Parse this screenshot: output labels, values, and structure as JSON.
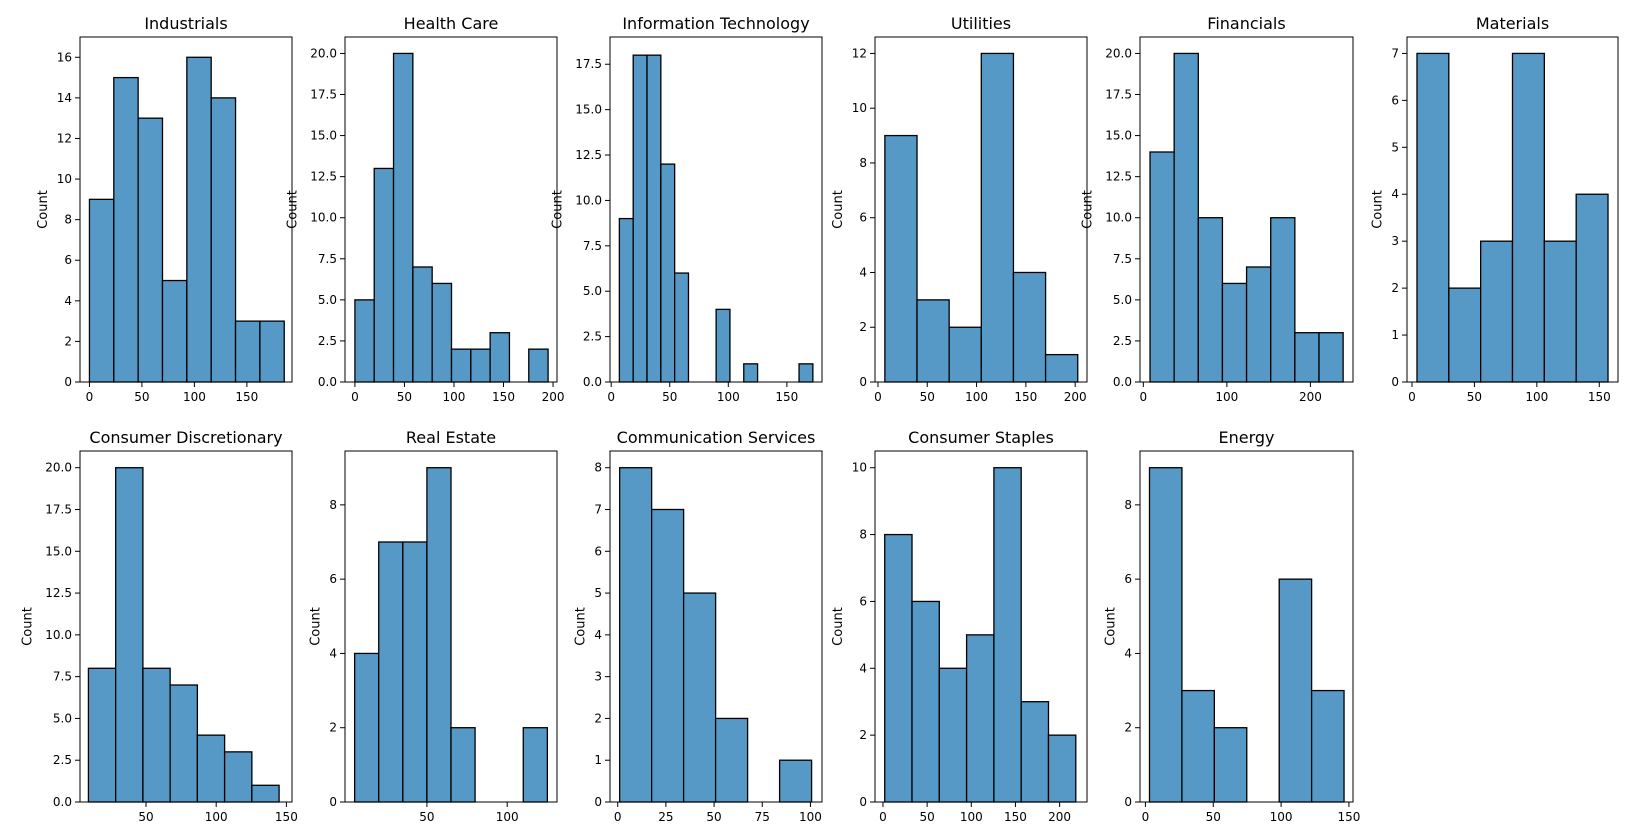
{
  "chart_data": [
    {
      "type": "bar",
      "title": "Industrials",
      "ylabel": "Count",
      "bin_start": 0,
      "bin_width": 23.2,
      "values": [
        9,
        15,
        13,
        5,
        16,
        14,
        3,
        3
      ],
      "xlim": [
        -9,
        193
      ],
      "ylim": [
        0,
        17
      ],
      "xticks": [
        0,
        50,
        100,
        150
      ],
      "xtick_labels": [
        "0",
        "50",
        "100",
        "150"
      ],
      "yticks": [
        0,
        2,
        4,
        6,
        8,
        10,
        12,
        14,
        16
      ],
      "ytick_labels": [
        "0",
        "2",
        "4",
        "6",
        "8",
        "10",
        "12",
        "14",
        "16"
      ]
    },
    {
      "type": "bar",
      "title": "Health Care",
      "ylabel": "Count",
      "bin_start": 0,
      "bin_width": 19.5,
      "values": [
        5,
        13,
        20,
        7,
        6,
        2,
        2,
        3,
        0,
        2
      ],
      "xlim": [
        -10,
        204
      ],
      "ylim": [
        0,
        21
      ],
      "xticks": [
        0,
        50,
        100,
        150,
        200
      ],
      "xtick_labels": [
        "0",
        "50",
        "100",
        "150",
        "200"
      ],
      "yticks": [
        0,
        2.5,
        5,
        7.5,
        10,
        12.5,
        15,
        17.5,
        20
      ],
      "ytick_labels": [
        "0.0",
        "2.5",
        "5.0",
        "7.5",
        "10.0",
        "12.5",
        "15.0",
        "17.5",
        "20.0"
      ]
    },
    {
      "type": "bar",
      "title": "Information Technology",
      "ylabel": "Count",
      "bin_start": 7,
      "bin_width": 11.8,
      "values": [
        9,
        18,
        18,
        12,
        6,
        0,
        0,
        4,
        0,
        1,
        0,
        0,
        0,
        1
      ],
      "xlim": [
        -1,
        180
      ],
      "ylim": [
        0,
        19
      ],
      "xticks": [
        0,
        50,
        100,
        150
      ],
      "xtick_labels": [
        "0",
        "50",
        "100",
        "150"
      ],
      "yticks": [
        0,
        2.5,
        5,
        7.5,
        10,
        12.5,
        15,
        17.5
      ],
      "ytick_labels": [
        "0.0",
        "2.5",
        "5.0",
        "7.5",
        "10.0",
        "12.5",
        "15.0",
        "17.5"
      ]
    },
    {
      "type": "bar",
      "title": "Utilities",
      "ylabel": "Count",
      "bin_start": 7,
      "bin_width": 32.6,
      "values": [
        9,
        3,
        2,
        12,
        4,
        1
      ],
      "xlim": [
        -3,
        212
      ],
      "ylim": [
        0,
        12.6
      ],
      "xticks": [
        0,
        50,
        100,
        150,
        200
      ],
      "xtick_labels": [
        "0",
        "50",
        "100",
        "150",
        "200"
      ],
      "yticks": [
        0,
        2,
        4,
        6,
        8,
        10,
        12
      ],
      "ytick_labels": [
        "0",
        "2",
        "4",
        "6",
        "8",
        "10",
        "12"
      ]
    },
    {
      "type": "bar",
      "title": "Financials",
      "ylabel": "Count",
      "bin_start": 8,
      "bin_width": 28.9,
      "values": [
        14,
        20,
        10,
        6,
        7,
        10,
        3,
        3
      ],
      "xlim": [
        -4,
        251
      ],
      "ylim": [
        0,
        21
      ],
      "xticks": [
        0,
        100,
        200
      ],
      "xtick_labels": [
        "0",
        "100",
        "200"
      ],
      "yticks": [
        0,
        2.5,
        5,
        7.5,
        10,
        12.5,
        15,
        17.5,
        20
      ],
      "ytick_labels": [
        "0.0",
        "2.5",
        "5.0",
        "7.5",
        "10.0",
        "12.5",
        "15.0",
        "17.5",
        "20.0"
      ]
    },
    {
      "type": "bar",
      "title": "Materials",
      "ylabel": "Count",
      "bin_start": 4,
      "bin_width": 25.5,
      "values": [
        7,
        2,
        3,
        7,
        3,
        4
      ],
      "xlim": [
        -4,
        165
      ],
      "ylim": [
        0,
        7.35
      ],
      "xticks": [
        0,
        50,
        100,
        150
      ],
      "xtick_labels": [
        "0",
        "50",
        "100",
        "150"
      ],
      "yticks": [
        0,
        1,
        2,
        3,
        4,
        5,
        6,
        7
      ],
      "ytick_labels": [
        "0",
        "1",
        "2",
        "3",
        "4",
        "5",
        "6",
        "7"
      ]
    },
    {
      "type": "bar",
      "title": "Consumer Discretionary",
      "ylabel": "Count",
      "bin_start": 9,
      "bin_width": 19.4,
      "values": [
        8,
        20,
        8,
        7,
        4,
        3,
        1
      ],
      "xlim": [
        3,
        154
      ],
      "ylim": [
        0,
        21
      ],
      "xticks": [
        50,
        100,
        150
      ],
      "xtick_labels": [
        "50",
        "100",
        "150"
      ],
      "yticks": [
        0,
        2.5,
        5,
        7.5,
        10,
        12.5,
        15,
        17.5,
        20
      ],
      "ytick_labels": [
        "0.0",
        "2.5",
        "5.0",
        "7.5",
        "10.0",
        "12.5",
        "15.0",
        "17.5",
        "20.0"
      ]
    },
    {
      "type": "bar",
      "title": "Real Estate",
      "ylabel": "Count",
      "bin_start": 5,
      "bin_width": 15,
      "values": [
        4,
        7,
        7,
        9,
        2,
        0,
        0,
        2
      ],
      "xlim": [
        -1,
        131
      ],
      "ylim": [
        0,
        9.45
      ],
      "xticks": [
        50,
        100
      ],
      "xtick_labels": [
        "50",
        "100"
      ],
      "yticks": [
        0,
        2,
        4,
        6,
        8
      ],
      "ytick_labels": [
        "0",
        "2",
        "4",
        "6",
        "8"
      ]
    },
    {
      "type": "bar",
      "title": "Communication Services",
      "ylabel": "Count",
      "bin_start": 1,
      "bin_width": 16.6,
      "values": [
        8,
        7,
        5,
        2,
        0,
        1
      ],
      "xlim": [
        -4,
        106
      ],
      "ylim": [
        0,
        8.4
      ],
      "xticks": [
        0,
        25,
        50,
        75,
        100
      ],
      "xtick_labels": [
        "0",
        "25",
        "50",
        "75",
        "100"
      ],
      "yticks": [
        0,
        1,
        2,
        3,
        4,
        5,
        6,
        7,
        8
      ],
      "ytick_labels": [
        "0",
        "1",
        "2",
        "3",
        "4",
        "5",
        "6",
        "7",
        "8"
      ]
    },
    {
      "type": "bar",
      "title": "Consumer Staples",
      "ylabel": "Count",
      "bin_start": 2,
      "bin_width": 30.9,
      "values": [
        8,
        6,
        4,
        5,
        10,
        3,
        2
      ],
      "xlim": [
        -9,
        231
      ],
      "ylim": [
        0,
        10.5
      ],
      "xticks": [
        0,
        50,
        100,
        150,
        200
      ],
      "xtick_labels": [
        "0",
        "50",
        "100",
        "150",
        "200"
      ],
      "yticks": [
        0,
        2,
        4,
        6,
        8,
        10
      ],
      "ytick_labels": [
        "0",
        "2",
        "4",
        "6",
        "8",
        "10"
      ]
    },
    {
      "type": "bar",
      "title": "Energy",
      "ylabel": "Count",
      "bin_start": 3,
      "bin_width": 23.9,
      "values": [
        9,
        3,
        2,
        0,
        6,
        3
      ],
      "xlim": [
        -4,
        153
      ],
      "ylim": [
        0,
        9.45
      ],
      "xticks": [
        0,
        50,
        100,
        150
      ],
      "xtick_labels": [
        "0",
        "50",
        "100",
        "150"
      ],
      "yticks": [
        0,
        2,
        4,
        6,
        8
      ],
      "ytick_labels": [
        "0",
        "2",
        "4",
        "6",
        "8"
      ]
    }
  ]
}
